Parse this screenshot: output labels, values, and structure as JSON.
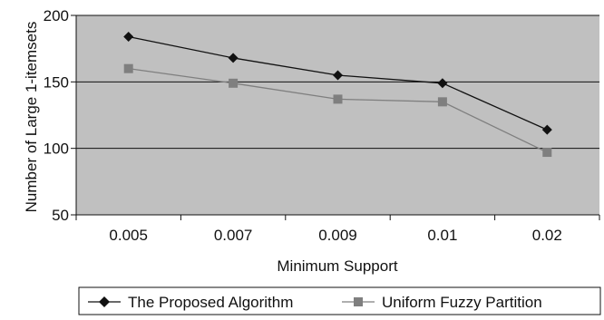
{
  "chart_data": {
    "type": "line",
    "categories": [
      "0.005",
      "0.007",
      "0.009",
      "0.01",
      "0.02"
    ],
    "series": [
      {
        "name": "The Proposed Algorithm",
        "values": [
          184,
          168,
          155,
          149,
          114
        ],
        "color": "#111111",
        "marker": "diamond"
      },
      {
        "name": "Uniform Fuzzy Partition",
        "values": [
          160,
          149,
          137,
          135,
          97
        ],
        "color": "#7f7f7f",
        "marker": "square"
      }
    ],
    "xlabel": "Minimum Support",
    "ylabel": "Number of Large 1-itemsets",
    "ylim": [
      50,
      200
    ],
    "yticks": [
      "50",
      "100",
      "150",
      "200"
    ],
    "grid": "horizontal",
    "legend": "bottom",
    "background_color": "#c0c0c0"
  }
}
